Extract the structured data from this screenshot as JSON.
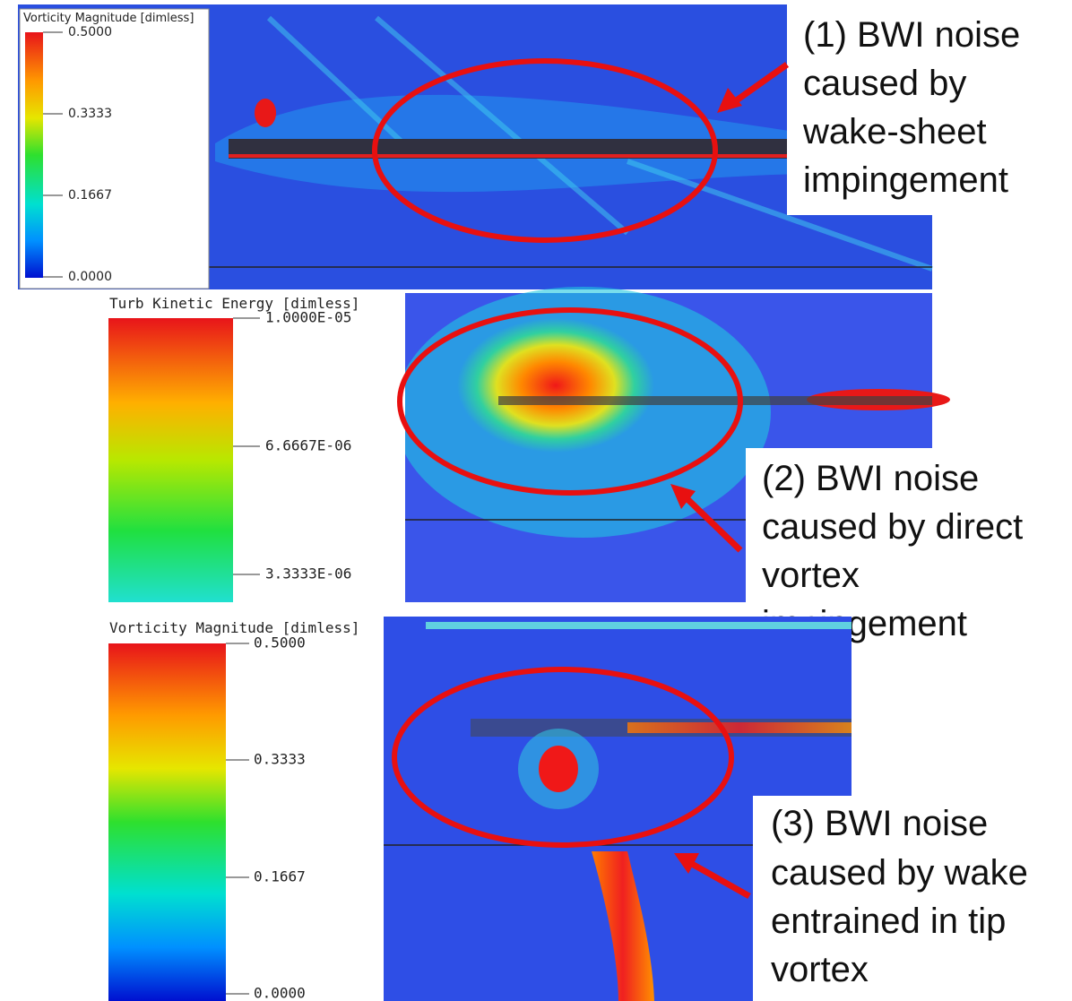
{
  "panels": [
    {
      "colorbar": {
        "title": "Vorticity Magnitude [dimless]",
        "ticks": [
          "0.5000",
          "0.3333",
          "0.1667",
          "0.0000"
        ]
      },
      "annotation": [
        "(1) BWI noise",
        "caused by",
        "wake-sheet",
        "impingement"
      ]
    },
    {
      "colorbar": {
        "title": "Turb Kinetic Energy [dimless]",
        "ticks": [
          "1.0000E-05",
          "6.6667E-06",
          "3.3333E-06"
        ]
      },
      "annotation": [
        "(2) BWI noise",
        "caused by direct",
        "vortex",
        "impingement"
      ]
    },
    {
      "colorbar": {
        "title": "Vorticity Magnitude [dimless]",
        "ticks": [
          "0.5000",
          "0.3333",
          "0.1667",
          "0.0000"
        ]
      },
      "annotation": [
        "(3) BWI noise",
        "caused by wake",
        "entrained in tip",
        "vortex"
      ]
    }
  ]
}
